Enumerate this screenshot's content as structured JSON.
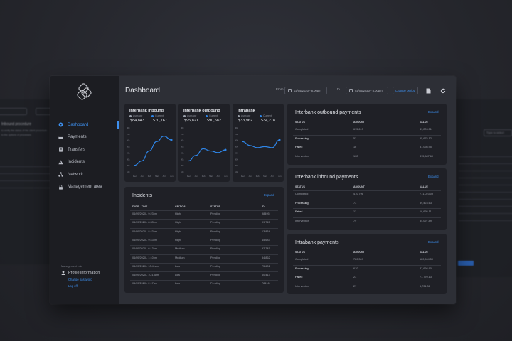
{
  "sidebar": {
    "items": [
      {
        "label": "Dashboard",
        "icon": "dashboard-icon",
        "active": true
      },
      {
        "label": "Payments",
        "icon": "card-icon"
      },
      {
        "label": "Transfers",
        "icon": "document-icon"
      },
      {
        "label": "Incidents",
        "icon": "warning-icon"
      },
      {
        "label": "Network",
        "icon": "network-icon"
      },
      {
        "label": "Management area",
        "icon": "lock-icon"
      }
    ],
    "footer": {
      "role": "Management role",
      "profile": "Profile information",
      "change_password": "Change password",
      "logout": "Log off"
    }
  },
  "header": {
    "title": "Dashboard",
    "from_label": "From",
    "from_value": "02/05/2020 - 8:00pm",
    "to_label": "to",
    "to_value": "02/06/2020 - 8:00pm",
    "change_period": "Change period"
  },
  "charts": [
    {
      "title": "Interbank inbound",
      "legend_avg": "Average",
      "legend_cur": "Current",
      "avg": "$84,843",
      "cur": "$70,767",
      "chart_data": {
        "type": "line",
        "x": [
          "Dec",
          "Jan",
          "Feb",
          "Mar",
          "Apr",
          "Jun"
        ],
        "ylabels": [
          "80k",
          "70k",
          "60k",
          "50k",
          "40k",
          "30k",
          "20k",
          "10k"
        ],
        "series": [
          {
            "values": [
              12,
              20,
              38,
              55,
              65,
              58
            ]
          }
        ]
      }
    },
    {
      "title": "Interbank outbound",
      "legend_avg": "Average",
      "legend_cur": "Current",
      "avg": "$95,821",
      "cur": "$90,582",
      "chart_data": {
        "type": "line",
        "x": [
          "Dec",
          "Jan",
          "Feb",
          "Mar",
          "Apr",
          "Jun"
        ],
        "ylabels": [
          "80k",
          "70k",
          "60k",
          "50k",
          "40k",
          "30k",
          "20k",
          "10k"
        ],
        "series": [
          {
            "values": [
              20,
              30,
              42,
              38,
              35,
              40
            ]
          }
        ]
      }
    },
    {
      "title": "Intrabank",
      "legend_avg": "Average",
      "legend_cur": "Current",
      "avg": "$33,962",
      "cur": "$34,278",
      "chart_data": {
        "type": "line",
        "x": [
          "Dec",
          "Jan",
          "Feb",
          "Mar",
          "Apr",
          "Jun"
        ],
        "ylabels": [
          "80k",
          "70k",
          "60k",
          "50k",
          "40k",
          "30k",
          "20k",
          "10k"
        ],
        "series": [
          {
            "values": [
              55,
              48,
              44,
              46,
              44,
              58
            ]
          }
        ]
      }
    }
  ],
  "incidents": {
    "title": "Incidents",
    "expand": "Expand",
    "headers": [
      "DATE - TIME",
      "CRITICAL",
      "STATUS",
      "ID"
    ],
    "rows": [
      [
        "06/05/2020 - 9:23pm",
        "High",
        "Pending",
        "98495"
      ],
      [
        "06/05/2020 - 8:33pm",
        "High",
        "Pending",
        "09.745"
      ],
      [
        "06/05/2020 - 8:43pm",
        "High",
        "Pending",
        "13.834"
      ],
      [
        "06/05/2020 - 9:43pm",
        "High",
        "Pending",
        "45.683"
      ],
      [
        "06/05/2020 - 6:13pm",
        "Medium",
        "Pending",
        "92.745"
      ],
      [
        "06/05/2020 - 1:10pm",
        "Medium",
        "Pending",
        "54.862"
      ],
      [
        "06/05/2020 - 10:41am",
        "Low",
        "Pending",
        "75.631"
      ],
      [
        "06/05/2020 - 10:13am",
        "Low",
        "Pending",
        "60.413"
      ],
      [
        "06/05/2020 - 2:17am",
        "Low",
        "Pending",
        "78416"
      ]
    ]
  },
  "outbound": {
    "title": "Interbank outbound payments",
    "expand": "Expand",
    "headers": [
      "STATUS",
      "AMOUNT",
      "VALUE"
    ],
    "rows": [
      [
        "Completed",
        "615,613",
        "49,203.51"
      ],
      [
        "Processing",
        "53",
        "55,675.12"
      ],
      [
        "Failed",
        "16",
        "31,098.95"
      ],
      [
        "Intervention",
        "102",
        "815,587.60"
      ]
    ]
  },
  "inbound": {
    "title": "Interbank inbound payments",
    "expand": "Expand",
    "headers": [
      "STATUS",
      "AMOUNT",
      "VALUE"
    ],
    "rows": [
      [
        "Completed",
        "470,796",
        "771,023.09"
      ],
      [
        "Processing",
        "73",
        "59,423.63"
      ],
      [
        "Failed",
        "13",
        "18,695.11"
      ],
      [
        "Intervention",
        "79",
        "54,097.89"
      ]
    ]
  },
  "intrabank": {
    "title": "Intrabank payments",
    "expand": "Expand",
    "headers": [
      "STATUS",
      "AMOUNT",
      "VALUE"
    ],
    "rows": [
      [
        "Completed",
        "720,309",
        "120,504.50"
      ],
      [
        "Processing",
        "610",
        "87,698.90"
      ],
      [
        "Failed",
        "23",
        "71,770.13"
      ],
      [
        "Intervention",
        "27",
        "5,731.36"
      ]
    ]
  },
  "bg_left": {
    "title": "Inbound procedure",
    "line1": "to verify the status of the client procedure",
    "line2": "to the options of processes"
  },
  "bg_right": {
    "title": "nts",
    "field": "Type to select"
  },
  "colors": {
    "accent": "#3d8fee",
    "line": "#2f86e8",
    "bg": "#2d2f36",
    "card": "#1f2026",
    "sidebar": "#1c1d22"
  }
}
